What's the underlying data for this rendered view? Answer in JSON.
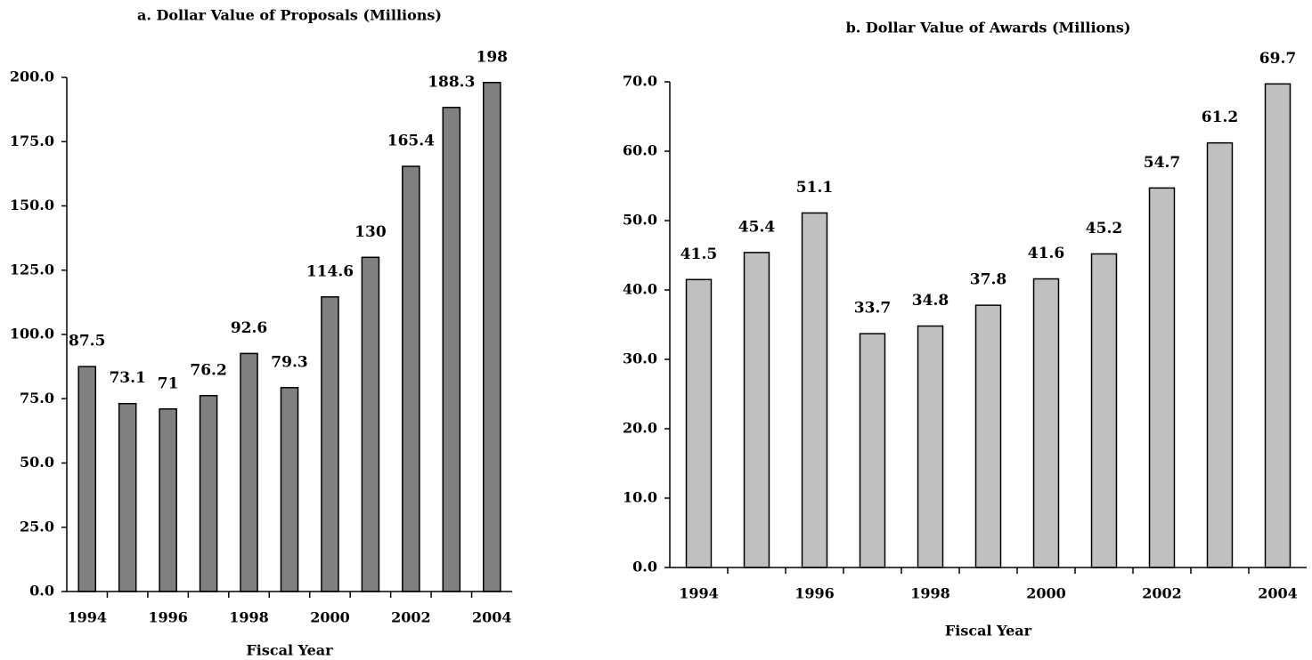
{
  "chart_data": [
    {
      "type": "bar",
      "title": "a. Dollar Value of Proposals (Millions)",
      "x_label": "Fiscal Year",
      "categories": [
        "1994",
        null,
        "1996",
        null,
        "1998",
        null,
        "2000",
        null,
        "2002",
        null,
        "2004"
      ],
      "values": [
        87.5,
        73.1,
        71,
        76.2,
        92.6,
        79.3,
        114.6,
        130,
        165.4,
        188.3,
        198
      ],
      "color": "#808080",
      "ylim": [
        0,
        200
      ],
      "yticks": [
        {
          "value": 0,
          "label": "0.0"
        },
        {
          "value": 25,
          "label": "25.0"
        },
        {
          "value": 50,
          "label": "50.0"
        },
        {
          "value": 75,
          "label": "75.0"
        },
        {
          "value": 100,
          "label": "100.0"
        },
        {
          "value": 125,
          "label": "125.0"
        },
        {
          "value": 150,
          "label": "150.0"
        },
        {
          "value": 175,
          "label": "175.0"
        },
        {
          "value": 200,
          "label": "200.0"
        }
      ]
    },
    {
      "type": "bar",
      "title": "b. Dollar Value of Awards (Millions)",
      "x_label": "Fiscal Year",
      "categories": [
        "1994",
        null,
        "1996",
        null,
        "1998",
        null,
        "2000",
        null,
        "2002",
        null,
        "2004"
      ],
      "values": [
        41.5,
        45.4,
        51.1,
        33.7,
        34.8,
        37.8,
        41.6,
        45.2,
        54.7,
        61.2,
        69.7
      ],
      "color": "#c0c0c0",
      "ylim": [
        0,
        70
      ],
      "yticks": [
        {
          "value": 0,
          "label": "0.0"
        },
        {
          "value": 10,
          "label": "10.0"
        },
        {
          "value": 20,
          "label": "20.0"
        },
        {
          "value": 30,
          "label": "30.0"
        },
        {
          "value": 40,
          "label": "40.0"
        },
        {
          "value": 50,
          "label": "50.0"
        },
        {
          "value": 60,
          "label": "60.0"
        },
        {
          "value": 70,
          "label": "70.0"
        }
      ]
    }
  ]
}
